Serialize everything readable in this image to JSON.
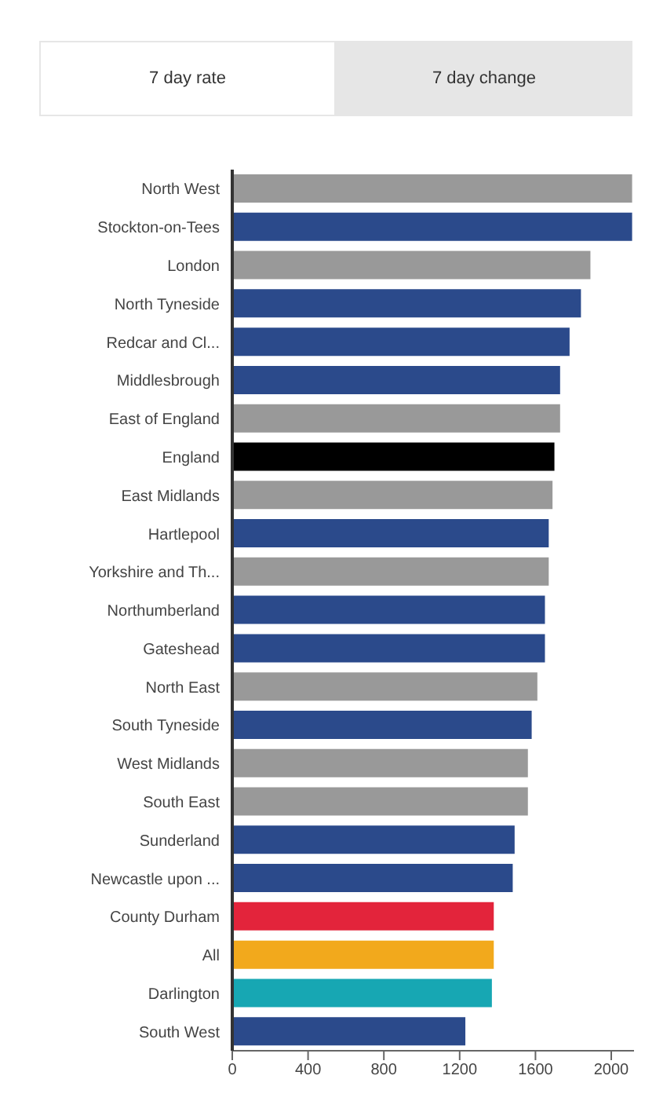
{
  "chart_data": {
    "type": "bar",
    "orientation": "horizontal",
    "annotations": [
      "7 day rate",
      "7 day change"
    ],
    "categories": [
      "North West",
      "Stockton-on-Tees",
      "London",
      "North Tyneside",
      "Redcar and Cl...",
      "Middlesbrough",
      "East of England",
      "England",
      "East Midlands",
      "Hartlepool",
      "Yorkshire and Th...",
      "Northumberland",
      "Gateshead",
      "North East",
      "South Tyneside",
      "West Midlands",
      "South East",
      "Sunderland",
      "Newcastle upon ...",
      "County Durham",
      "All",
      "Darlington",
      "South West"
    ],
    "values": [
      2110,
      2110,
      1890,
      1840,
      1780,
      1730,
      1730,
      1700,
      1690,
      1670,
      1670,
      1650,
      1650,
      1610,
      1580,
      1560,
      1560,
      1490,
      1480,
      1380,
      1380,
      1370,
      1230
    ],
    "colors": [
      "#999999",
      "#2b4a8b",
      "#999999",
      "#2b4a8b",
      "#2b4a8b",
      "#2b4a8b",
      "#999999",
      "#000000",
      "#999999",
      "#2b4a8b",
      "#999999",
      "#2b4a8b",
      "#2b4a8b",
      "#999999",
      "#2b4a8b",
      "#999999",
      "#999999",
      "#2b4a8b",
      "#2b4a8b",
      "#e3243b",
      "#f2a91c",
      "#17a7b3",
      "#2b4a8b"
    ],
    "xlim": [
      0,
      2120
    ],
    "xticks": [
      0,
      400,
      800,
      1200,
      1600,
      2000
    ]
  }
}
